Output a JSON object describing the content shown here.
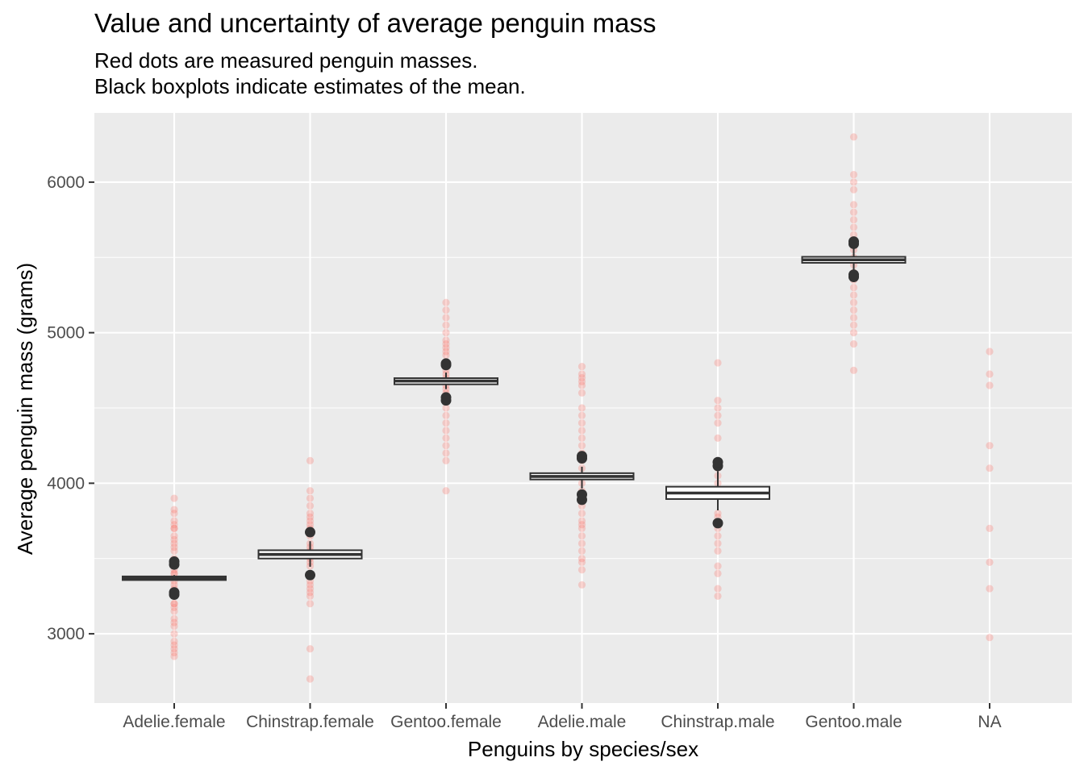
{
  "chart_data": {
    "type": "scatter",
    "title": "Value and uncertainty of average penguin mass",
    "subtitle_lines": [
      "Red dots are measured penguin masses.",
      "Black boxplots indicate estimates of the mean."
    ],
    "xlabel": "Penguins by species/sex",
    "ylabel": "Average penguin mass (grams)",
    "categories": [
      "Adelie.female",
      "Chinstrap.female",
      "Gentoo.female",
      "Adelie.male",
      "Chinstrap.male",
      "Gentoo.male",
      "NA"
    ],
    "ylim": [
      2540,
      6460
    ],
    "yticks": [
      3000,
      4000,
      5000,
      6000
    ],
    "ytick_labels": [
      "3000",
      "4000",
      "5000",
      "6000"
    ],
    "grid": true,
    "colors": {
      "panel": "#ebebeb",
      "grid": "#ffffff",
      "points": "#f8766d",
      "box": "#333333"
    },
    "series": [
      {
        "name": "Red dots are measured penguin masses.",
        "kind": "points",
        "values": [
          [
            2850,
            2875,
            2900,
            2925,
            2950,
            3000,
            3050,
            3075,
            3100,
            3150,
            3175,
            3200,
            3200,
            3250,
            3275,
            3300,
            3325,
            3350,
            3400,
            3400,
            3425,
            3450,
            3475,
            3500,
            3550,
            3575,
            3600,
            3625,
            3650,
            3700,
            3700,
            3725,
            3750,
            3800,
            3825,
            3900
          ],
          [
            2700,
            2900,
            3200,
            3250,
            3275,
            3300,
            3325,
            3350,
            3400,
            3450,
            3475,
            3500,
            3525,
            3550,
            3575,
            3600,
            3650,
            3675,
            3700,
            3725,
            3750,
            3775,
            3800,
            3850,
            3900,
            3950,
            4150
          ],
          [
            3950,
            4150,
            4200,
            4250,
            4300,
            4350,
            4400,
            4450,
            4500,
            4550,
            4575,
            4600,
            4625,
            4650,
            4675,
            4700,
            4725,
            4750,
            4775,
            4800,
            4850,
            4875,
            4900,
            4925,
            4950,
            5000,
            5050,
            5100,
            5150,
            5200
          ],
          [
            3325,
            3425,
            3475,
            3500,
            3550,
            3600,
            3650,
            3700,
            3725,
            3750,
            3800,
            3850,
            3900,
            3950,
            4000,
            4050,
            4100,
            4150,
            4200,
            4250,
            4300,
            4350,
            4400,
            4450,
            4500,
            4600,
            4650,
            4675,
            4700,
            4725,
            4775
          ],
          [
            3250,
            3300,
            3400,
            3450,
            3550,
            3600,
            3650,
            3700,
            3775,
            3800,
            3950,
            4000,
            4050,
            4100,
            4150,
            4300,
            4400,
            4450,
            4500,
            4550,
            4800
          ],
          [
            4750,
            4925,
            5000,
            5050,
            5100,
            5150,
            5200,
            5250,
            5300,
            5350,
            5400,
            5450,
            5500,
            5550,
            5600,
            5650,
            5700,
            5750,
            5800,
            5850,
            5950,
            6000,
            6050,
            6300
          ],
          [
            2975,
            3300,
            3475,
            3700,
            4100,
            4250,
            4650,
            4725,
            4875
          ]
        ]
      },
      {
        "name": "Black boxplots indicate estimates of the mean.",
        "kind": "boxplot",
        "boxes": [
          {
            "lower": 3355,
            "q1": 3357,
            "median": 3368,
            "q3": 3381,
            "upper": 3390,
            "outliers": [
              3260,
              3275,
              3460,
              3480
            ]
          },
          {
            "lower": 3445,
            "q1": 3500,
            "median": 3527,
            "q3": 3555,
            "upper": 3615,
            "outliers": [
              3390,
              3675
            ]
          },
          {
            "lower": 4625,
            "q1": 4657,
            "median": 4679,
            "q3": 4698,
            "upper": 4735,
            "outliers": [
              4550,
              4570,
              4785,
              4795
            ]
          },
          {
            "lower": 3965,
            "q1": 4025,
            "median": 4045,
            "q3": 4067,
            "upper": 4110,
            "outliers": [
              3890,
              3925,
              4165,
              4180
            ]
          },
          {
            "lower": 3820,
            "q1": 3895,
            "median": 3935,
            "q3": 3977,
            "upper": 4080,
            "outliers": [
              3735,
              4115,
              4140
            ]
          },
          {
            "lower": 5400,
            "q1": 5464,
            "median": 5484,
            "q3": 5504,
            "upper": 5560,
            "outliers": [
              5370,
              5385,
              5590,
              5605
            ]
          },
          null
        ]
      }
    ]
  }
}
